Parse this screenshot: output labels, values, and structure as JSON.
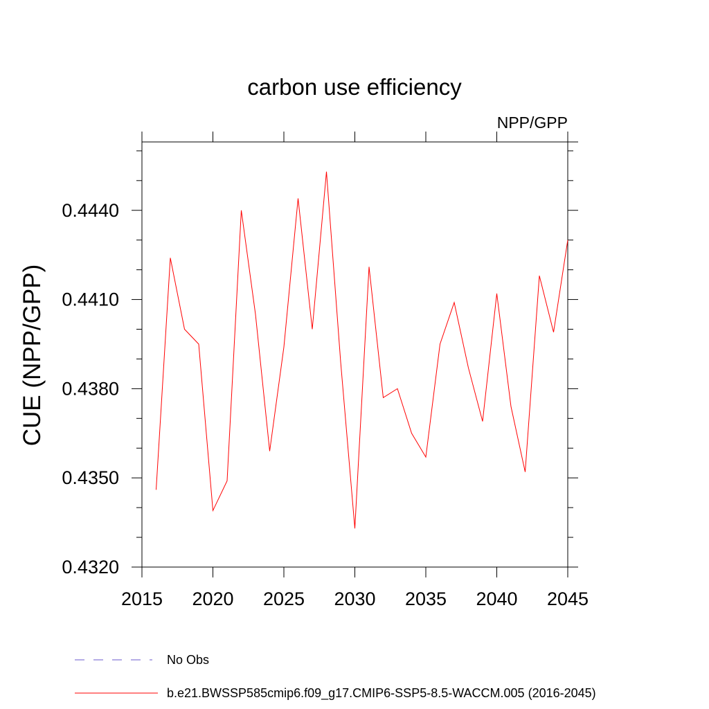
{
  "chart_data": {
    "type": "line",
    "title": "carbon use efficiency",
    "subtitle": "NPP/GPP",
    "ylabel": "CUE  (NPP/GPP)",
    "xlabel": "",
    "xlim": [
      2015,
      2045
    ],
    "ylim": [
      0.432,
      0.4463
    ],
    "x_ticks": [
      2015,
      2020,
      2025,
      2030,
      2035,
      2040,
      2045
    ],
    "x_tick_labels": [
      "2015",
      "2020",
      "2025",
      "2030",
      "2035",
      "2040",
      "2045"
    ],
    "y_ticks": [
      0.432,
      0.435,
      0.438,
      0.441,
      0.444
    ],
    "y_tick_labels": [
      "0.4320",
      "0.4350",
      "0.4380",
      "0.4410",
      "0.4440"
    ],
    "grid": false,
    "legend_position": "bottom",
    "series": [
      {
        "name": "No Obs",
        "color": "#6a5acd",
        "style": "dashed",
        "x": [],
        "values": []
      },
      {
        "name": "b.e21.BWSSP585cmip6.f09_g17.CMIP6-SSP5-8.5-WACCM.005 (2016-2045)",
        "color": "#ff0000",
        "style": "solid",
        "x": [
          2016,
          2017,
          2018,
          2019,
          2020,
          2021,
          2022,
          2023,
          2024,
          2025,
          2026,
          2027,
          2028,
          2029,
          2030,
          2031,
          2032,
          2033,
          2034,
          2035,
          2036,
          2037,
          2038,
          2039,
          2040,
          2041,
          2042,
          2043,
          2044,
          2045
        ],
        "values": [
          0.4346,
          0.4424,
          0.44,
          0.4395,
          0.4339,
          0.4349,
          0.444,
          0.4405,
          0.4359,
          0.4394,
          0.4444,
          0.44,
          0.4453,
          0.4389,
          0.4333,
          0.4421,
          0.4377,
          0.438,
          0.4365,
          0.4357,
          0.4395,
          0.4409,
          0.4387,
          0.4369,
          0.4412,
          0.4374,
          0.4352,
          0.4418,
          0.4399,
          0.443
        ]
      }
    ]
  }
}
